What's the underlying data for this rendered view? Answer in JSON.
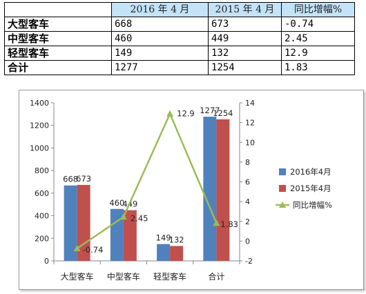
{
  "table": {
    "headers": [
      "",
      "2016 年 4 月",
      "2015 年 4 月",
      "同比增幅%"
    ],
    "rows": [
      {
        "name": "大型客车",
        "v2016": "668",
        "v2015": "673",
        "growth": "-0.74"
      },
      {
        "name": "中型客车",
        "v2016": "460",
        "v2015": "449",
        "growth": "2.45"
      },
      {
        "name": "轻型客车",
        "v2016": "149",
        "v2015": "132",
        "growth": "12.9"
      },
      {
        "name": "合计",
        "v2016": "1277",
        "v2015": "1254",
        "growth": "1.83"
      }
    ]
  },
  "chart_data": {
    "type": "bar",
    "categories": [
      "大型客车",
      "中型客车",
      "轻型客车",
      "合计"
    ],
    "series": [
      {
        "name": "2016年4月",
        "type": "bar",
        "axis": "left",
        "values": [
          668,
          460,
          149,
          1277
        ],
        "color": "#4f81bd"
      },
      {
        "name": "2015年4月",
        "type": "bar",
        "axis": "left",
        "values": [
          673,
          449,
          132,
          1254
        ],
        "color": "#c0504d"
      },
      {
        "name": "同比增幅%",
        "type": "line",
        "axis": "right",
        "values": [
          -0.74,
          2.45,
          12.9,
          1.83
        ],
        "color": "#9bbb59"
      }
    ],
    "data_labels": {
      "bars_2016": [
        "668",
        "460",
        "149",
        "1277"
      ],
      "bars_2015": [
        "673",
        "449",
        "132",
        "1254"
      ],
      "line": [
        "-0.74",
        "2.45",
        "12.9",
        "1.83"
      ]
    },
    "y_left": {
      "min": 0,
      "max": 1400,
      "ticks": [
        "0",
        "200",
        "400",
        "600",
        "800",
        "1000",
        "1200",
        "1400"
      ]
    },
    "y_right": {
      "min": -2,
      "max": 14,
      "ticks": [
        "-2",
        "0",
        "2",
        "4",
        "6",
        "8",
        "10",
        "12",
        "14"
      ]
    },
    "grid": false,
    "legend_position": "right"
  }
}
